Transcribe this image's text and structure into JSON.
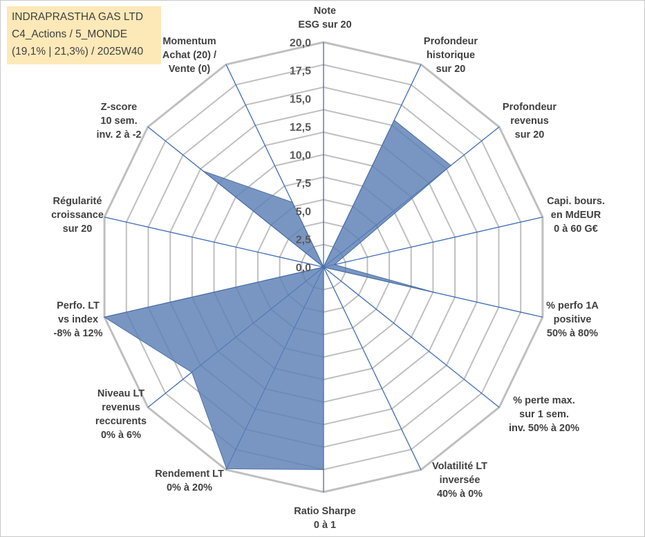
{
  "title_box": {
    "line1": "INDRAPRASTHA GAS LTD",
    "line2": "C4_Actions / 5_MONDE",
    "line3": "(19,1% | 21,3%) / 2025W40"
  },
  "chart_data": {
    "type": "radar",
    "rmax": 20,
    "tick_labels": [
      "0,0",
      "2,5",
      "5,0",
      "7,5",
      "10,0",
      "12,5",
      "15,0",
      "17,5",
      "20,0"
    ],
    "tick_values": [
      0,
      2.5,
      5,
      7.5,
      10,
      12.5,
      15,
      17.5,
      20
    ],
    "grid_levels": 10,
    "fill_color": "#5b7fb4",
    "axis_color": "#3e6cb4",
    "grid_color": "#bfbfbf",
    "axes": [
      {
        "label": [
          "Note",
          "ESG sur 20"
        ],
        "value": 0
      },
      {
        "label": [
          "Profondeur",
          "historique",
          "sur 20"
        ],
        "value": 14.5
      },
      {
        "label": [
          "Profondeur",
          "revenus",
          "sur 20"
        ],
        "value": 14.5
      },
      {
        "label": [
          "Capi. bours.",
          "en MdEUR",
          "0 à 60 G€"
        ],
        "value": 1.0
      },
      {
        "label": [
          "% perfo 1A",
          "positive",
          "50% à 80%"
        ],
        "value": 10.2
      },
      {
        "label": [
          "% perte max.",
          "sur 1 sem.",
          "inv. 50% à 20%"
        ],
        "value": 0
      },
      {
        "label": [
          "Volatilité LT",
          "inversée",
          "40% à 0%"
        ],
        "value": 0
      },
      {
        "label": [
          "Ratio Sharpe",
          "0 à 1"
        ],
        "value": 18.0
      },
      {
        "label": [
          "Rendement LT",
          "0% à 20%"
        ],
        "value": 19.9
      },
      {
        "label": [
          "Niveau LT",
          "revenus",
          "reccurents",
          "0% à 6%"
        ],
        "value": 15.0
      },
      {
        "label": [
          "Perfo. LT",
          "vs index",
          "-8% à 12%"
        ],
        "value": 20.0
      },
      {
        "label": [
          "Régularité",
          "croissance",
          "sur 20"
        ],
        "value": 0
      },
      {
        "label": [
          "Z-score",
          "10 sem.",
          "inv. 2 à -2"
        ],
        "value": 13.7
      },
      {
        "label": [
          "Momentum",
          "Achat (20) /",
          "Vente (0)"
        ],
        "value": 6.4
      }
    ]
  }
}
